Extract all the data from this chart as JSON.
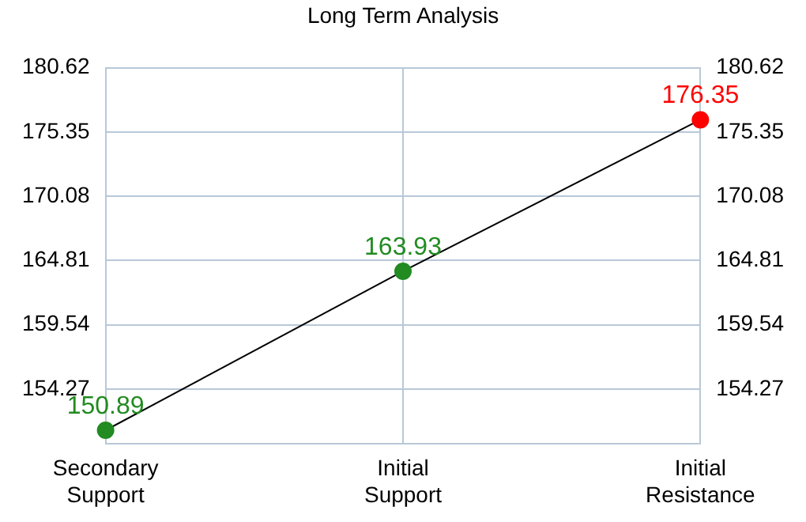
{
  "chart_data": {
    "type": "line",
    "title": "Long Term Analysis",
    "categories": [
      "Secondary Support",
      "Initial Support",
      "Initial Resistance"
    ],
    "series": [
      {
        "color": "#000000",
        "colors": [
          "#228b22",
          "#228b22",
          "#ff0000"
        ],
        "values": [
          150.89,
          163.93,
          176.35
        ]
      }
    ],
    "ylim": [
      149.8,
      180.62
    ],
    "yticks": [
      154.27,
      159.54,
      164.81,
      170.08,
      175.35,
      180.62
    ],
    "y2lim": [
      149.8,
      180.62
    ],
    "y2ticks": [
      154.27,
      159.54,
      164.81,
      170.08,
      175.35,
      180.62
    ],
    "grid": true,
    "marker": "circle",
    "line_style": "solid",
    "data_labels": true,
    "legend": false
  }
}
